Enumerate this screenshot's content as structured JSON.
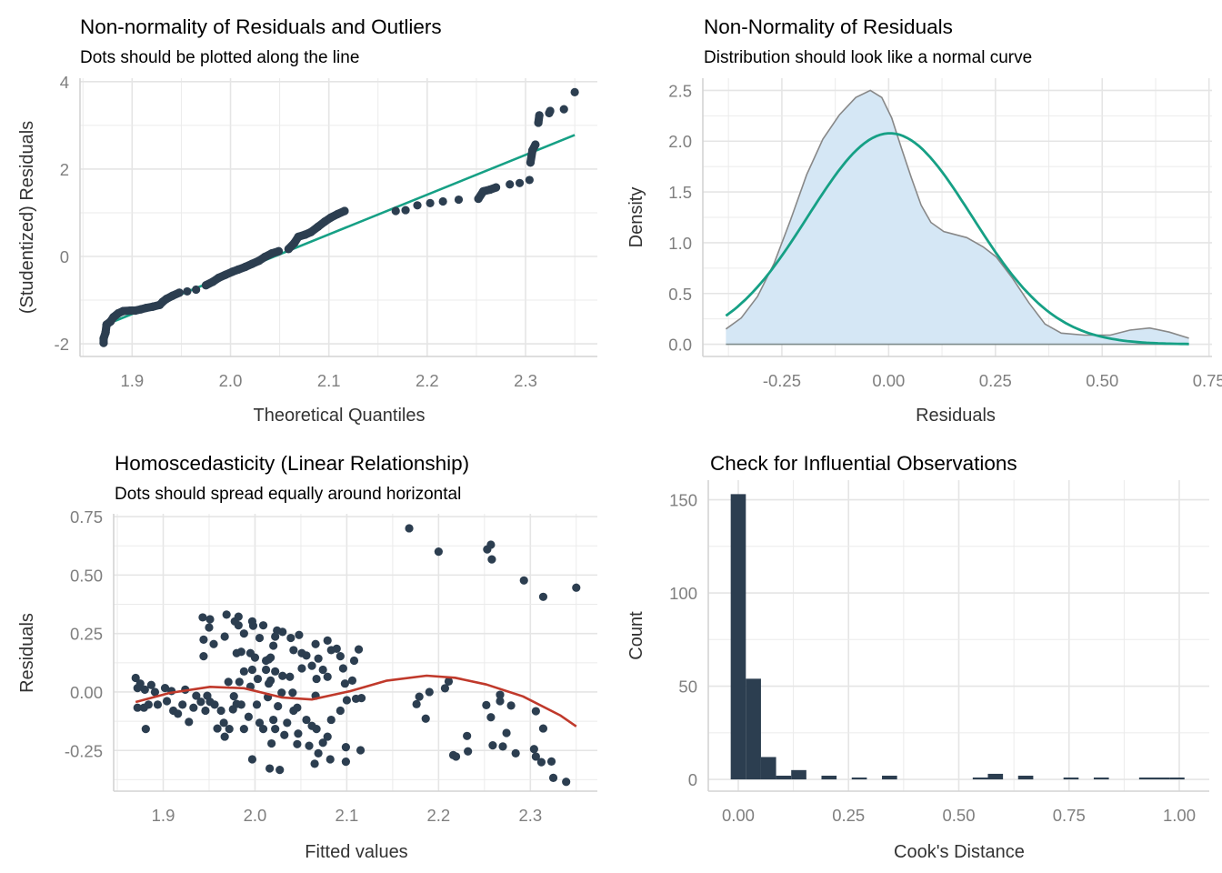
{
  "colors": {
    "points": "#2c3e50",
    "reference_line": "#16a085",
    "loess": "#c0392b",
    "density_fill": "#d5e7f5",
    "density_line": "#888888",
    "bars": "#2c3e50",
    "grid": "#ebebeb"
  },
  "chart_data": [
    {
      "type": "scatter",
      "title": "Non-normality of Residuals and Outliers",
      "subtitle": "Dots should be plotted along the line",
      "xlabel": "Theoretical Quantiles",
      "ylabel": "(Studentized) Residuals",
      "xlim": [
        1.847,
        2.373
      ],
      "ylim": [
        -2.29,
        4.08
      ],
      "x_ticks": [
        1.9,
        2.0,
        2.1,
        2.2,
        2.3
      ],
      "x_tick_labels": [
        "1.9",
        "2.0",
        "2.1",
        "2.2",
        "2.3"
      ],
      "y_ticks": [
        -2,
        0,
        2,
        4
      ],
      "y_tick_labels": [
        "-2",
        "0",
        "2",
        "4"
      ],
      "grid": true,
      "reference_line": {
        "x": [
          1.87,
          2.35
        ],
        "y": [
          -1.59,
          2.78
        ]
      },
      "points": [
        [
          1.871,
          -1.98
        ],
        [
          1.871,
          -1.88
        ],
        [
          1.873,
          -1.74
        ],
        [
          1.874,
          -1.56
        ],
        [
          1.878,
          -1.49
        ],
        [
          1.881,
          -1.39
        ],
        [
          1.886,
          -1.3
        ],
        [
          1.891,
          -1.25
        ],
        [
          1.898,
          -1.24
        ],
        [
          1.903,
          -1.24
        ],
        [
          1.909,
          -1.21
        ],
        [
          1.914,
          -1.18
        ],
        [
          1.921,
          -1.15
        ],
        [
          1.928,
          -1.11
        ],
        [
          1.931,
          -1.04
        ],
        [
          1.935,
          -0.97
        ],
        [
          1.941,
          -0.9
        ],
        [
          1.948,
          -0.83
        ],
        [
          1.956,
          -0.8
        ],
        [
          1.965,
          -0.76
        ],
        [
          1.975,
          -0.66
        ],
        [
          1.982,
          -0.58
        ],
        [
          1.988,
          -0.49
        ],
        [
          1.995,
          -0.42
        ],
        [
          2.002,
          -0.35
        ],
        [
          2.008,
          -0.3
        ],
        [
          2.015,
          -0.24
        ],
        [
          2.022,
          -0.17
        ],
        [
          2.029,
          -0.1
        ],
        [
          2.035,
          -0.01
        ],
        [
          2.042,
          0.07
        ],
        [
          2.049,
          0.12
        ],
        [
          2.059,
          0.17
        ],
        [
          2.065,
          0.31
        ],
        [
          2.069,
          0.45
        ],
        [
          2.076,
          0.5
        ],
        [
          2.082,
          0.56
        ],
        [
          2.089,
          0.68
        ],
        [
          2.096,
          0.8
        ],
        [
          2.102,
          0.89
        ],
        [
          2.109,
          0.97
        ],
        [
          2.116,
          1.04
        ],
        [
          2.168,
          1.04
        ],
        [
          2.178,
          1.06
        ],
        [
          2.19,
          1.17
        ],
        [
          2.203,
          1.22
        ],
        [
          2.216,
          1.26
        ],
        [
          2.232,
          1.3
        ],
        [
          2.252,
          1.32
        ],
        [
          2.257,
          1.49
        ],
        [
          2.264,
          1.53
        ],
        [
          2.27,
          1.58
        ],
        [
          2.284,
          1.65
        ],
        [
          2.294,
          1.68
        ],
        [
          2.304,
          1.75
        ],
        [
          2.305,
          2.15
        ],
        [
          2.307,
          2.43
        ],
        [
          2.31,
          2.56
        ],
        [
          2.313,
          3.06
        ],
        [
          2.314,
          3.23
        ],
        [
          2.324,
          3.28
        ],
        [
          2.325,
          3.33
        ],
        [
          2.339,
          3.37
        ],
        [
          2.35,
          3.76
        ]
      ]
    },
    {
      "type": "area",
      "title": "Non-Normality of Residuals",
      "subtitle": "Distribution should look like a normal curve",
      "xlabel": "Residuals",
      "ylabel": "Density",
      "xlim": [
        -0.435,
        0.757
      ],
      "ylim": [
        -0.12,
        2.62
      ],
      "x_ticks": [
        -0.25,
        0,
        0.25,
        0.5,
        0.75
      ],
      "x_tick_labels": [
        "-0.25",
        "0.00",
        "0.25",
        "0.50",
        "0.75"
      ],
      "y_ticks": [
        0,
        0.5,
        1,
        1.5,
        2,
        2.5
      ],
      "y_tick_labels": [
        "0.0",
        "0.5",
        "1.0",
        "1.5",
        "2.0",
        "2.5"
      ],
      "grid": true,
      "density": [
        [
          -0.381,
          0.15
        ],
        [
          -0.345,
          0.26
        ],
        [
          -0.307,
          0.47
        ],
        [
          -0.268,
          0.8
        ],
        [
          -0.23,
          1.22
        ],
        [
          -0.192,
          1.67
        ],
        [
          -0.154,
          2.02
        ],
        [
          -0.115,
          2.26
        ],
        [
          -0.077,
          2.43
        ],
        [
          -0.043,
          2.5
        ],
        [
          -0.016,
          2.43
        ],
        [
          0.007,
          2.23
        ],
        [
          0.03,
          1.93
        ],
        [
          0.053,
          1.64
        ],
        [
          0.076,
          1.37
        ],
        [
          0.099,
          1.2
        ],
        [
          0.129,
          1.11
        ],
        [
          0.183,
          1.05
        ],
        [
          0.221,
          0.96
        ],
        [
          0.252,
          0.86
        ],
        [
          0.29,
          0.65
        ],
        [
          0.328,
          0.41
        ],
        [
          0.366,
          0.2
        ],
        [
          0.404,
          0.11
        ],
        [
          0.458,
          0.09
        ],
        [
          0.519,
          0.09
        ],
        [
          0.565,
          0.14
        ],
        [
          0.611,
          0.16
        ],
        [
          0.657,
          0.12
        ],
        [
          0.703,
          0.06
        ]
      ],
      "normal_curve": {
        "mean": 0.003,
        "sd": 0.192,
        "range": [
          -0.381,
          0.703
        ]
      }
    },
    {
      "type": "scatter",
      "title": "Homoscedasticity (Linear Relationship)",
      "subtitle": "Dots should spread equally around horizontal",
      "xlabel": "Fitted values",
      "ylabel": "Residuals",
      "xlim": [
        1.846,
        2.373
      ],
      "ylim": [
        -0.424,
        0.762
      ],
      "x_ticks": [
        1.9,
        2.0,
        2.1,
        2.2,
        2.3
      ],
      "x_tick_labels": [
        "1.9",
        "2.0",
        "2.1",
        "2.2",
        "2.3"
      ],
      "y_ticks": [
        -0.25,
        0,
        0.25,
        0.5,
        0.75
      ],
      "y_tick_labels": [
        "-0.25",
        "0.00",
        "0.25",
        "0.50",
        "0.75"
      ],
      "grid": true,
      "loess": [
        [
          1.87,
          -0.043
        ],
        [
          1.907,
          -0.004
        ],
        [
          1.951,
          0.022
        ],
        [
          1.988,
          0.016
        ],
        [
          2.029,
          -0.023
        ],
        [
          2.062,
          -0.032
        ],
        [
          2.103,
          0.003
        ],
        [
          2.143,
          0.048
        ],
        [
          2.187,
          0.07
        ],
        [
          2.218,
          0.061
        ],
        [
          2.252,
          0.032
        ],
        [
          2.292,
          -0.019
        ],
        [
          2.333,
          -0.101
        ],
        [
          2.35,
          -0.147
        ]
      ],
      "points": [
        [
          1.87,
          0.06
        ],
        [
          1.872,
          0.017
        ],
        [
          1.875,
          0.036
        ],
        [
          1.88,
          0.01
        ],
        [
          1.887,
          0.03
        ],
        [
          1.891,
          0.0
        ],
        [
          1.872,
          -0.067
        ],
        [
          1.879,
          -0.067
        ],
        [
          1.884,
          -0.054
        ],
        [
          1.894,
          -0.054
        ],
        [
          1.881,
          -0.158
        ],
        [
          1.902,
          0.017
        ],
        [
          1.909,
          0.004
        ],
        [
          1.904,
          -0.039
        ],
        [
          1.911,
          -0.08
        ],
        [
          1.916,
          -0.093
        ],
        [
          1.921,
          -0.054
        ],
        [
          1.924,
          0.01
        ],
        [
          1.928,
          -0.128
        ],
        [
          1.933,
          -0.067
        ],
        [
          1.936,
          -0.016
        ],
        [
          1.941,
          -0.042
        ],
        [
          1.946,
          -0.08
        ],
        [
          1.948,
          -0.016
        ],
        [
          1.951,
          -0.042
        ],
        [
          1.956,
          -0.054
        ],
        [
          1.959,
          -0.156
        ],
        [
          1.963,
          -0.08
        ],
        [
          1.966,
          -0.132
        ],
        [
          1.967,
          -0.191
        ],
        [
          1.972,
          -0.158
        ],
        [
          1.976,
          -0.074
        ],
        [
          1.977,
          -0.018
        ],
        [
          1.98,
          -0.051
        ],
        [
          1.985,
          -0.054
        ],
        [
          1.988,
          -0.158
        ],
        [
          1.971,
          0.043
        ],
        [
          1.983,
          0.043
        ],
        [
          1.995,
          0.023
        ],
        [
          1.993,
          -0.106
        ],
        [
          1.997,
          -0.288
        ],
        [
          2.002,
          -0.054
        ],
        [
          2.005,
          -0.132
        ],
        [
          2.009,
          -0.158
        ],
        [
          2.014,
          -0.022
        ],
        [
          2.015,
          0.036
        ],
        [
          2.016,
          -0.327
        ],
        [
          2.018,
          -0.22
        ],
        [
          2.02,
          -0.119
        ],
        [
          2.022,
          -0.158
        ],
        [
          2.025,
          -0.061
        ],
        [
          2.027,
          -0.333
        ],
        [
          2.029,
          -0.003
        ],
        [
          2.032,
          -0.184
        ],
        [
          2.035,
          -0.132
        ],
        [
          2.041,
          -0.003
        ],
        [
          2.042,
          -0.08
        ],
        [
          2.046,
          -0.067
        ],
        [
          2.046,
          -0.223
        ],
        [
          2.047,
          -0.178
        ],
        [
          2.051,
          0.101
        ],
        [
          2.056,
          -0.119
        ],
        [
          2.059,
          -0.23
        ],
        [
          2.062,
          -0.145
        ],
        [
          2.065,
          -0.307
        ],
        [
          2.066,
          -0.016
        ],
        [
          2.067,
          -0.158
        ],
        [
          2.069,
          -0.262
        ],
        [
          2.074,
          -0.217
        ],
        [
          2.079,
          -0.191
        ],
        [
          2.083,
          -0.119
        ],
        [
          2.082,
          -0.288
        ],
        [
          2.093,
          -0.08
        ],
        [
          2.099,
          -0.236
        ],
        [
          2.099,
          -0.298
        ],
        [
          2.1,
          -0.035
        ],
        [
          2.11,
          -0.029
        ],
        [
          2.115,
          -0.249
        ],
        [
          2.116,
          -0.026
        ],
        [
          2.098,
          0.036
        ],
        [
          2.106,
          0.049
        ],
        [
          2.113,
          0.182
        ],
        [
          2.108,
          0.134
        ],
        [
          2.096,
          0.101
        ],
        [
          2.093,
          0.153
        ],
        [
          2.089,
          0.185
        ],
        [
          2.079,
          0.22
        ],
        [
          2.083,
          0.179
        ],
        [
          2.066,
          0.205
        ],
        [
          2.074,
          0.095
        ],
        [
          2.079,
          0.065
        ],
        [
          2.067,
          0.056
        ],
        [
          2.062,
          0.112
        ],
        [
          2.069,
          0.143
        ],
        [
          2.056,
          0.156
        ],
        [
          2.051,
          0.166
        ],
        [
          2.042,
          0.179
        ],
        [
          2.048,
          0.244
        ],
        [
          2.039,
          0.231
        ],
        [
          2.03,
          0.257
        ],
        [
          2.024,
          0.263
        ],
        [
          2.022,
          0.237
        ],
        [
          2.02,
          0.198
        ],
        [
          2.015,
          0.14
        ],
        [
          2.012,
          0.095
        ],
        [
          2.017,
          0.049
        ],
        [
          2.022,
          0.088
        ],
        [
          2.03,
          0.069
        ],
        [
          2.038,
          0.065
        ],
        [
          2.005,
          0.231
        ],
        [
          2.009,
          0.285
        ],
        [
          1.997,
          0.302
        ],
        [
          1.998,
          0.283
        ],
        [
          1.988,
          0.25
        ],
        [
          1.982,
          0.322
        ],
        [
          1.978,
          0.302
        ],
        [
          1.982,
          0.285
        ],
        [
          1.969,
          0.331
        ],
        [
          1.967,
          0.237
        ],
        [
          1.955,
          0.205
        ],
        [
          1.944,
          0.224
        ],
        [
          1.944,
          0.153
        ],
        [
          1.943,
          0.319
        ],
        [
          1.951,
          0.311
        ],
        [
          1.95,
          0.276
        ],
        [
          1.98,
          0.166
        ],
        [
          1.985,
          0.172
        ],
        [
          1.995,
          0.166
        ],
        [
          2.0,
          0.147
        ],
        [
          1.988,
          0.088
        ],
        [
          1.997,
          0.095
        ],
        [
          2.003,
          0.056
        ],
        [
          2.012,
          0.134
        ],
        [
          2.017,
          0.147
        ],
        [
          2.168,
          0.7
        ],
        [
          2.2,
          0.6
        ],
        [
          2.253,
          0.61
        ],
        [
          2.257,
          0.63
        ],
        [
          2.258,
          0.567
        ],
        [
          2.293,
          0.477
        ],
        [
          2.314,
          0.407
        ],
        [
          2.35,
          0.446
        ],
        [
          2.211,
          0.045
        ],
        [
          2.207,
          0.016
        ],
        [
          2.19,
          0.0
        ],
        [
          2.179,
          -0.02
        ],
        [
          2.176,
          -0.052
        ],
        [
          2.186,
          -0.114
        ],
        [
          2.231,
          -0.188
        ],
        [
          2.216,
          -0.27
        ],
        [
          2.219,
          -0.276
        ],
        [
          2.232,
          -0.254
        ],
        [
          2.252,
          -0.056
        ],
        [
          2.257,
          -0.108
        ],
        [
          2.267,
          -0.012
        ],
        [
          2.267,
          -0.039
        ],
        [
          2.279,
          -0.058
        ],
        [
          2.274,
          -0.175
        ],
        [
          2.259,
          -0.228
        ],
        [
          2.27,
          -0.233
        ],
        [
          2.284,
          -0.262
        ],
        [
          2.306,
          -0.082
        ],
        [
          2.314,
          -0.156
        ],
        [
          2.304,
          -0.244
        ],
        [
          2.306,
          -0.276
        ],
        [
          2.312,
          -0.3
        ],
        [
          2.323,
          -0.297
        ],
        [
          2.325,
          -0.367
        ],
        [
          2.339,
          -0.384
        ]
      ]
    },
    {
      "type": "bar",
      "title": "Check for Influential Observations",
      "subtitle": "",
      "xlabel": "Cook's Distance",
      "ylabel": "Count",
      "xlim": [
        -0.068,
        1.068
      ],
      "ylim": [
        -6.3,
        160.5
      ],
      "x_ticks": [
        0,
        0.25,
        0.5,
        0.75,
        1
      ],
      "x_tick_labels": [
        "0.00",
        "0.25",
        "0.50",
        "0.75",
        "1.00"
      ],
      "y_ticks": [
        0,
        50,
        100,
        150
      ],
      "y_tick_labels": [
        "0",
        "50",
        "100",
        "150"
      ],
      "grid": true,
      "bin_width": 0.0343,
      "first_bin_center": 0,
      "counts": [
        153,
        54,
        12,
        2,
        5,
        0,
        2,
        0,
        1,
        0,
        2,
        0,
        0,
        0,
        0,
        0,
        1,
        3,
        0,
        2,
        0,
        0,
        1,
        0,
        1,
        0,
        0,
        1,
        1,
        1
      ]
    }
  ]
}
